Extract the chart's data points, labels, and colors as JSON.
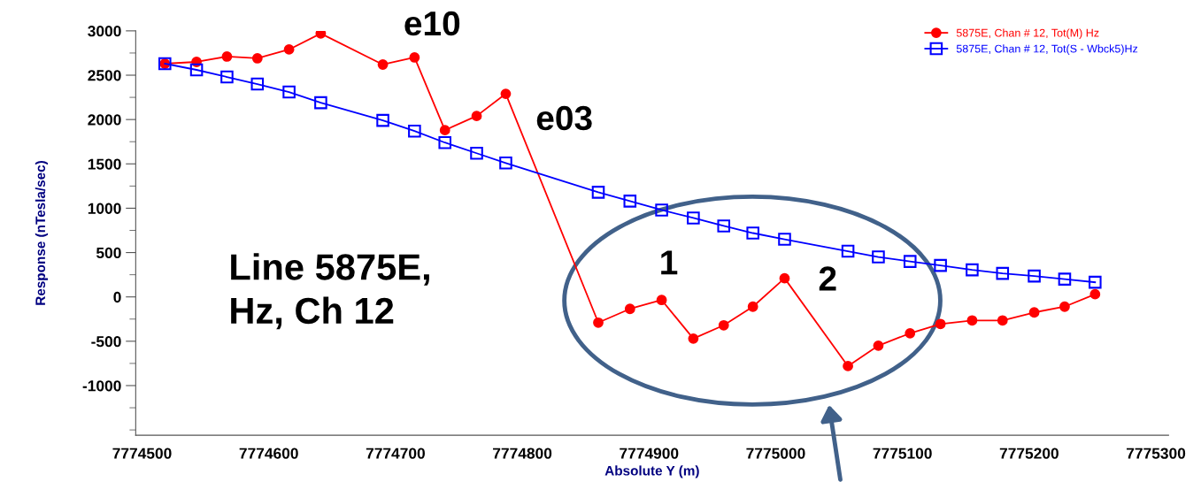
{
  "chart_data": {
    "type": "line",
    "xlabel": "Absolute Y (m)",
    "ylabel": "Response (nTesla/sec)",
    "x": [
      7774518,
      7774543,
      7774567,
      7774591,
      7774616,
      7774641,
      7774690,
      7774715,
      7774739,
      7774764,
      7774787,
      7774860,
      7774885,
      7774910,
      7774935,
      7774959,
      7774982,
      7775007,
      7775057,
      7775081,
      7775106,
      7775130,
      7775155,
      7775179,
      7775204,
      7775228,
      7775252
    ],
    "series": [
      {
        "name": "5875E, Chan # 12, Tot(M) Hz",
        "color": "#ff0000",
        "marker": "circle",
        "values": [
          2630,
          2650,
          2710,
          2690,
          2790,
          2970,
          2620,
          2700,
          1880,
          2040,
          2290,
          -290,
          -135,
          -35,
          -470,
          -320,
          -110,
          210,
          -780,
          -550,
          -410,
          -305,
          -265,
          -265,
          -175,
          -110,
          30
        ]
      },
      {
        "name": "5875E, Chan # 12, Tot(S - Wbck5)Hz",
        "color": "#0000ff",
        "marker": "square",
        "values": [
          2630,
          2560,
          2480,
          2400,
          2310,
          2190,
          1990,
          1870,
          1740,
          1620,
          1510,
          1180,
          1080,
          980,
          890,
          800,
          720,
          650,
          515,
          450,
          400,
          355,
          305,
          265,
          235,
          200,
          165
        ]
      }
    ],
    "xlim": [
      7774495,
      7775310
    ],
    "xticks": [
      7774500,
      7774600,
      7774700,
      7774800,
      7774900,
      7775000,
      7775100,
      7775200,
      7775300
    ],
    "ylim": [
      -1560,
      3000
    ],
    "yticks": [
      -1000,
      -500,
      0,
      500,
      1000,
      1500,
      2000,
      2500,
      3000
    ],
    "grid": false,
    "legend": "top right",
    "line_style": "solid",
    "annotations": [
      "e10",
      "e03",
      "Line 5875E,\nHz, Ch 12",
      "1",
      "2"
    ]
  }
}
